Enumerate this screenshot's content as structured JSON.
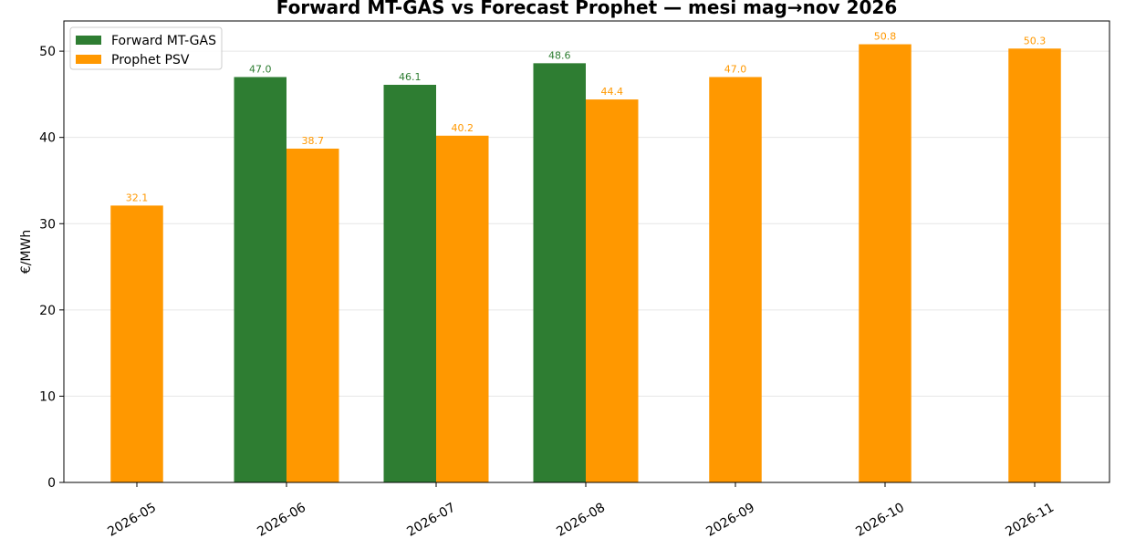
{
  "chart_data": {
    "type": "bar",
    "title": "Forward MT-GAS vs Forecast Prophet — mesi mag→nov 2026",
    "xlabel": "",
    "ylabel": "€/MWh",
    "ylim": [
      0,
      53.5
    ],
    "yticks": [
      0,
      10,
      20,
      30,
      40,
      50
    ],
    "grid": true,
    "legend_position": "top-left",
    "categories": [
      "2026-05",
      "2026-06",
      "2026-07",
      "2026-08",
      "2026-09",
      "2026-10",
      "2026-11"
    ],
    "series": [
      {
        "name": "Forward MT-GAS",
        "color": "#2e7d32",
        "values": [
          null,
          47.0,
          46.1,
          48.6,
          null,
          null,
          null
        ]
      },
      {
        "name": "Prophet PSV",
        "color": "#ff9800",
        "values": [
          32.1,
          38.7,
          40.2,
          44.4,
          47.0,
          50.8,
          50.3
        ]
      }
    ]
  }
}
